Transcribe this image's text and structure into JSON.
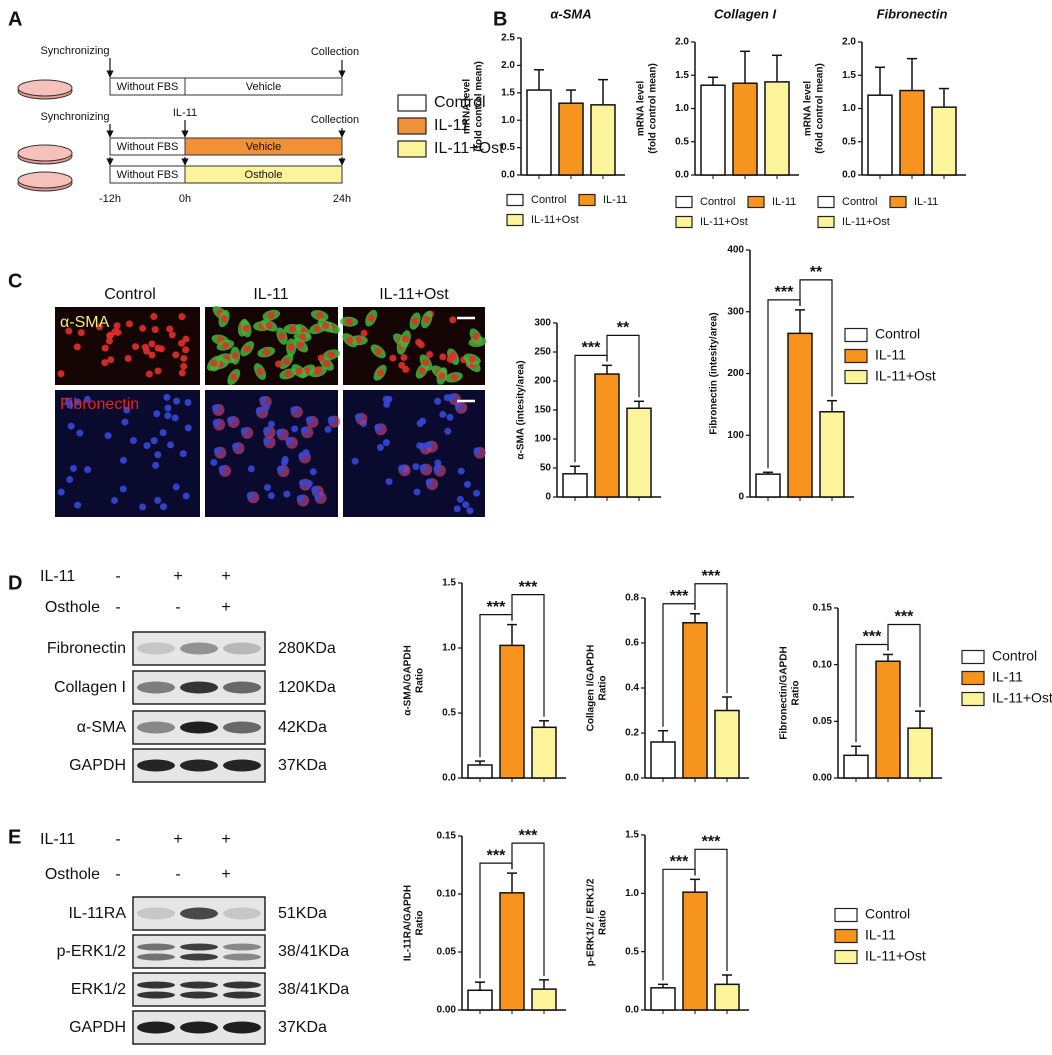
{
  "panel_a": {
    "label": "A",
    "synchronizing": "Synchronizing",
    "collection": "Collection",
    "treatment": "IL-11",
    "rows": [
      {
        "steps": [
          "Without FBS",
          "Vehicle"
        ]
      },
      {
        "steps": [
          "Without FBS",
          "Vehicle"
        ]
      },
      {
        "steps": [
          "Without FBS",
          "Osthole"
        ]
      }
    ],
    "times": [
      "-12h",
      "0h",
      "24h"
    ],
    "legend": [
      {
        "name": "Control",
        "color": "#ffffff"
      },
      {
        "name": "IL-11",
        "color": "#f0913a"
      },
      {
        "name": "IL-11+Ost",
        "color": "#fbf49a"
      }
    ]
  },
  "panel_b": {
    "label": "B"
  },
  "panel_c": {
    "label": "C",
    "columns": [
      "Control",
      "IL-11",
      "IL-11+Ost"
    ],
    "stains": [
      "α-SMA",
      "Fibronectin"
    ],
    "legend": [
      {
        "name": "Control",
        "color": "#ffffff"
      },
      {
        "name": "IL-11",
        "color": "#f7941d"
      },
      {
        "name": "IL-11+Ost",
        "color": "#fbf49a"
      }
    ]
  },
  "panel_d": {
    "label": "D",
    "treatments": [
      {
        "name": "IL-11",
        "signs": [
          "-",
          "+",
          "+"
        ]
      },
      {
        "name": "Osthole",
        "signs": [
          "-",
          "-",
          "+"
        ]
      }
    ],
    "blots": [
      {
        "name": "Fibronectin",
        "size": "280KDa"
      },
      {
        "name": "Collagen I",
        "size": "120KDa"
      },
      {
        "name": "α-SMA",
        "size": "42KDa"
      },
      {
        "name": "GAPDH",
        "size": "37KDa"
      }
    ],
    "legend": [
      {
        "name": "Control",
        "color": "#ffffff"
      },
      {
        "name": "IL-11",
        "color": "#f7941d"
      },
      {
        "name": "IL-11+Ost",
        "color": "#fbf49a"
      }
    ]
  },
  "panel_e": {
    "label": "E",
    "treatments": [
      {
        "name": "IL-11",
        "signs": [
          "-",
          "+",
          "+"
        ]
      },
      {
        "name": "Osthole",
        "signs": [
          "-",
          "-",
          "+"
        ]
      }
    ],
    "blots": [
      {
        "name": "IL-11RA",
        "size": "51KDa"
      },
      {
        "name": "p-ERK1/2",
        "size": "38/41KDa"
      },
      {
        "name": "ERK1/2",
        "size": "38/41KDa"
      },
      {
        "name": "GAPDH",
        "size": "37KDa"
      }
    ],
    "legend": [
      {
        "name": "Control",
        "color": "#ffffff"
      },
      {
        "name": "IL-11",
        "color": "#f7941d"
      },
      {
        "name": "IL-11+Ost",
        "color": "#fbf49a"
      }
    ]
  },
  "chart_data": [
    {
      "type": "bar",
      "title": "α-SMA",
      "ylabel": [
        "mRNA level",
        "(fold control mean)"
      ],
      "values": [
        1.55,
        1.31,
        1.28
      ],
      "errors": [
        0.37,
        0.24,
        0.46
      ],
      "ylim": [
        0,
        2.5
      ],
      "yticks": [
        {
          "value": 0,
          "label": "0.0"
        },
        0.5,
        {
          "value": 1,
          "label": "1.0"
        },
        1.5,
        {
          "value": 2,
          "label": "2.0"
        },
        2.5
      ],
      "legend": [
        {
          "name": "Control",
          "color": "#ffffff"
        },
        {
          "name": "IL-11",
          "color": "#f7941d"
        },
        {
          "name": "IL-11+Ost",
          "color": "#fbf49a"
        }
      ]
    },
    {
      "type": "bar",
      "title": "Collagen I",
      "ylabel": [
        "mRNA level",
        "(fold control mean)"
      ],
      "values": [
        1.35,
        1.38,
        1.4
      ],
      "errors": [
        0.12,
        0.48,
        0.4
      ],
      "ylim": [
        0,
        2
      ],
      "yticks": [
        {
          "value": 0,
          "label": "0.0"
        },
        0.5,
        {
          "value": 1,
          "label": "1.0"
        },
        1.5,
        {
          "value": 2,
          "label": "2.0"
        }
      ],
      "legend": [
        {
          "name": "Control",
          "color": "#ffffff"
        },
        {
          "name": "IL-11",
          "color": "#f7941d"
        },
        {
          "name": "IL-11+Ost",
          "color": "#fbf49a"
        }
      ]
    },
    {
      "type": "bar",
      "title": "Fibronectin",
      "ylabel": [
        "mRNA level",
        "(fold control mean)"
      ],
      "values": [
        1.2,
        1.27,
        1.02
      ],
      "errors": [
        0.42,
        0.48,
        0.28
      ],
      "ylim": [
        0,
        2
      ],
      "yticks": [
        {
          "value": 0,
          "label": "0.0"
        },
        0.5,
        {
          "value": 1,
          "label": "1.0"
        },
        1.5,
        {
          "value": 2,
          "label": "2.0"
        }
      ],
      "legend": [
        {
          "name": "Control",
          "color": "#ffffff"
        },
        {
          "name": "IL-11",
          "color": "#f7941d"
        },
        {
          "name": "IL-11+Ost",
          "color": "#fbf49a"
        }
      ]
    },
    {
      "type": "bar",
      "ylabel": [
        "α-SMA (intesity/area)"
      ],
      "values": [
        40,
        212,
        153
      ],
      "errors": [
        13,
        15,
        12
      ],
      "significance": [
        "***",
        "**"
      ],
      "ylim": [
        0,
        300
      ],
      "yticks": [
        0,
        50,
        100,
        150,
        200,
        250,
        300
      ]
    },
    {
      "type": "bar",
      "ylabel": [
        "Fibronectin (intesity/area)"
      ],
      "values": [
        37,
        265,
        138
      ],
      "errors": [
        3,
        38,
        18
      ],
      "significance": [
        "***",
        "**"
      ],
      "ylim": [
        0,
        400
      ],
      "yticks": [
        0,
        100,
        200,
        300,
        400
      ]
    },
    {
      "type": "bar",
      "ylabel": [
        "α-SMA/GAPDH",
        "Ratio"
      ],
      "values": [
        0.1,
        1.02,
        0.39
      ],
      "errors": [
        0.03,
        0.16,
        0.05
      ],
      "significance": [
        "***",
        "***"
      ],
      "ylim": [
        0,
        1.5
      ],
      "yticks": [
        {
          "value": 0,
          "label": "0.0"
        },
        0.5,
        {
          "value": 1,
          "label": "1.0"
        },
        1.5
      ]
    },
    {
      "type": "bar",
      "ylabel": [
        "Collagen I/GAPDH",
        "Ratio"
      ],
      "values": [
        0.16,
        0.69,
        0.3
      ],
      "errors": [
        0.05,
        0.04,
        0.06
      ],
      "significance": [
        "***",
        "***"
      ],
      "ylim": [
        0,
        0.8
      ],
      "yticks": [
        {
          "value": 0,
          "label": "0.0"
        },
        0.2,
        0.4,
        0.6,
        0.8
      ]
    },
    {
      "type": "bar",
      "ylabel": [
        "Fibronectin/GAPDH",
        "Ratio"
      ],
      "values": [
        0.02,
        0.103,
        0.044
      ],
      "errors": [
        0.008,
        0.006,
        0.015
      ],
      "significance": [
        "***",
        "***"
      ],
      "ylim": [
        0,
        0.15
      ],
      "yticks": [
        {
          "value": 0,
          "label": "0.00"
        },
        0.05,
        {
          "value": 0.1,
          "label": "0.10"
        },
        0.15
      ]
    },
    {
      "type": "bar",
      "ylabel": [
        "IL-11RA/GAPDH",
        "Ratio"
      ],
      "values": [
        0.017,
        0.101,
        0.018
      ],
      "errors": [
        0.007,
        0.017,
        0.008
      ],
      "significance": [
        "***",
        "***"
      ],
      "ylim": [
        0,
        0.15
      ],
      "yticks": [
        {
          "value": 0,
          "label": "0.00"
        },
        0.05,
        {
          "value": 0.1,
          "label": "0.10"
        },
        0.15
      ]
    },
    {
      "type": "bar",
      "ylabel": [
        "p-ERK1/2 / ERK1/2",
        "Ratio"
      ],
      "values": [
        0.19,
        1.01,
        0.22
      ],
      "errors": [
        0.03,
        0.11,
        0.08
      ],
      "significance": [
        "***",
        "***"
      ],
      "ylim": [
        0,
        1.5
      ],
      "yticks": [
        {
          "value": 0,
          "label": "0.0"
        },
        0.5,
        {
          "value": 1,
          "label": "1.0"
        },
        1.5
      ]
    }
  ]
}
